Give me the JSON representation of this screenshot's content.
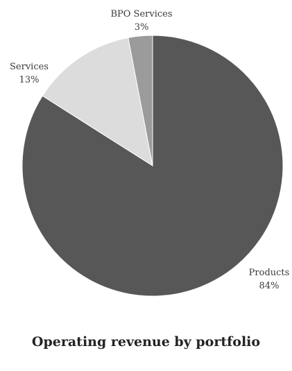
{
  "chart_data": {
    "type": "pie",
    "title": "Operating revenue by portfolio",
    "slices": [
      {
        "label": "Products",
        "value": 84,
        "value_label": "84%",
        "color": "#575757"
      },
      {
        "label": "Services",
        "value": 13,
        "value_label": "13%",
        "color": "#dcdcdc"
      },
      {
        "label": "BPO Services",
        "value": 3,
        "value_label": "3%",
        "color": "#9b9b9b"
      }
    ],
    "start_angle": "12 o'clock",
    "direction": "clockwise",
    "legend": "none"
  }
}
